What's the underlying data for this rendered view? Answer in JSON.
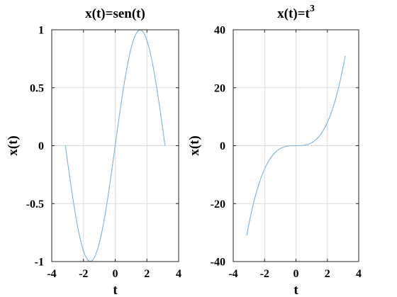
{
  "colors": {
    "line": "#7fb2d6",
    "grid": "#dcdcdc",
    "axis": "#262626",
    "background": "#ffffff"
  },
  "chart_data": [
    {
      "type": "line",
      "title": "x(t)=sen(t)",
      "title_superscript": "",
      "xlabel": "t",
      "ylabel": "x(t)",
      "xlim": [
        -4,
        4
      ],
      "ylim": [
        -1,
        1
      ],
      "xticks": [
        -4,
        -2,
        0,
        2,
        4
      ],
      "xtick_labels": [
        "-4",
        "-2",
        "0",
        "2",
        "4"
      ],
      "yticks": [
        -1,
        -0.5,
        0,
        0.5,
        1
      ],
      "ytick_labels": [
        "-1",
        "-0.5",
        "0",
        "0.5",
        "1"
      ],
      "grid": true,
      "series": [
        {
          "x": [
            -3.1416,
            -2.9845,
            -2.8274,
            -2.6704,
            -2.5133,
            -2.3562,
            -2.1991,
            -2.042,
            -1.885,
            -1.7279,
            -1.5708,
            -1.4137,
            -1.2566,
            -1.0996,
            -0.9425,
            -0.7854,
            -0.6283,
            -0.4712,
            -0.3142,
            -0.1571,
            0,
            0.1571,
            0.3142,
            0.4712,
            0.6283,
            0.7854,
            0.9425,
            1.0996,
            1.2566,
            1.4137,
            1.5708,
            1.7279,
            1.885,
            2.042,
            2.1991,
            2.3562,
            2.5133,
            2.6704,
            2.8274,
            2.9845,
            3.1416
          ],
          "y": [
            0,
            -0.1564,
            -0.309,
            -0.454,
            -0.5878,
            -0.7071,
            -0.809,
            -0.891,
            -0.9511,
            -0.9877,
            -1,
            -0.9877,
            -0.9511,
            -0.891,
            -0.809,
            -0.7071,
            -0.5878,
            -0.454,
            -0.309,
            -0.1564,
            0,
            0.1564,
            0.309,
            0.454,
            0.5878,
            0.7071,
            0.809,
            0.891,
            0.9511,
            0.9877,
            1,
            0.9877,
            0.9511,
            0.891,
            0.809,
            0.7071,
            0.5878,
            0.454,
            0.309,
            0.1564,
            0
          ]
        }
      ]
    },
    {
      "type": "line",
      "title": "x(t)=t",
      "title_superscript": "3",
      "xlabel": "t",
      "ylabel": "x(t)",
      "xlim": [
        -4,
        4
      ],
      "ylim": [
        -40,
        40
      ],
      "xticks": [
        -4,
        -2,
        0,
        2,
        4
      ],
      "xtick_labels": [
        "-4",
        "-2",
        "0",
        "2",
        "4"
      ],
      "yticks": [
        -40,
        -20,
        0,
        20,
        40
      ],
      "ytick_labels": [
        "-40",
        "-20",
        "0",
        "20",
        "40"
      ],
      "grid": true,
      "series": [
        {
          "x": [
            -3.1416,
            -2.9845,
            -2.8274,
            -2.6704,
            -2.5133,
            -2.3562,
            -2.1991,
            -2.042,
            -1.885,
            -1.7279,
            -1.5708,
            -1.4137,
            -1.2566,
            -1.0996,
            -0.9425,
            -0.7854,
            -0.6283,
            -0.4712,
            -0.3142,
            -0.1571,
            0,
            0.1571,
            0.3142,
            0.4712,
            0.6283,
            0.7854,
            0.9425,
            1.0996,
            1.2566,
            1.4137,
            1.5708,
            1.7279,
            1.885,
            2.042,
            2.1991,
            2.3562,
            2.5133,
            2.6704,
            2.8274,
            2.9845,
            3.1416
          ],
          "y": [
            -31.006,
            -26.585,
            -22.604,
            -19.043,
            -15.875,
            -13.081,
            -10.635,
            -8.515,
            -6.698,
            -5.159,
            -3.876,
            -2.825,
            -1.984,
            -1.33,
            -0.837,
            -0.484,
            -0.248,
            -0.105,
            -0.031,
            -0.004,
            0,
            0.004,
            0.031,
            0.105,
            0.248,
            0.484,
            0.837,
            1.33,
            1.984,
            2.825,
            3.876,
            5.159,
            6.698,
            8.515,
            10.635,
            13.081,
            15.875,
            19.043,
            22.604,
            26.585,
            31.006
          ]
        }
      ]
    }
  ]
}
